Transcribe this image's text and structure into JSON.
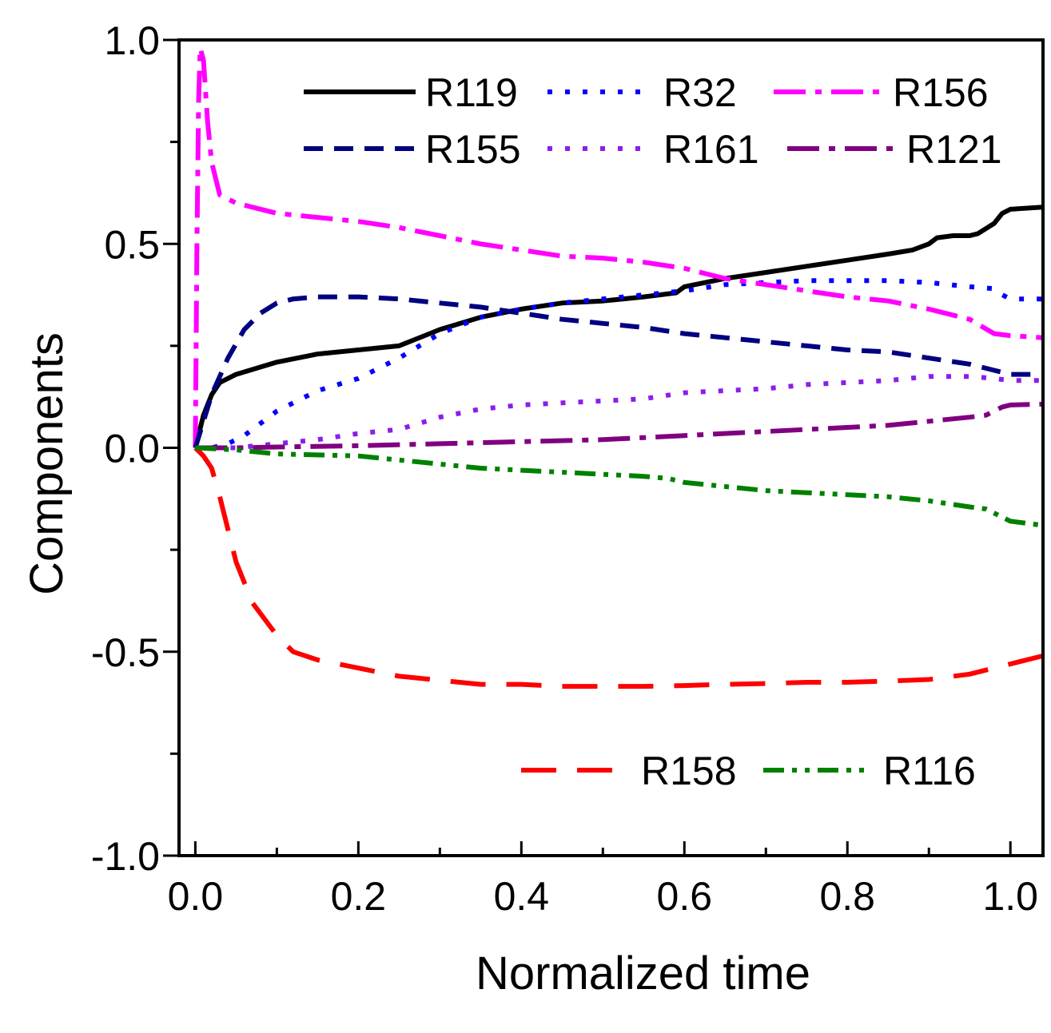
{
  "chart_data": {
    "type": "line",
    "title": "",
    "xlabel": "Normalized time",
    "ylabel": "Components",
    "xlim": [
      -0.02,
      1.04
    ],
    "ylim": [
      -1.0,
      1.0
    ],
    "xticks": [
      0.0,
      0.2,
      0.4,
      0.6,
      0.8,
      1.0
    ],
    "xtick_labels": [
      "0.0",
      "0.2",
      "0.4",
      "0.6",
      "0.8",
      "1.0"
    ],
    "yticks": [
      -1.0,
      -0.5,
      0.0,
      0.5,
      1.0
    ],
    "ytick_labels": [
      "-1.0",
      "-0.5",
      "0.0",
      "0.5",
      "1.0"
    ],
    "grid": false,
    "legend_position": "top (upper rows) and bottom-right",
    "series": [
      {
        "name": "R119",
        "color": "#000000",
        "dash": "solid",
        "x": [
          0,
          0.01,
          0.02,
          0.03,
          0.05,
          0.1,
          0.15,
          0.2,
          0.25,
          0.3,
          0.35,
          0.4,
          0.45,
          0.5,
          0.55,
          0.59,
          0.6,
          0.65,
          0.7,
          0.75,
          0.8,
          0.85,
          0.88,
          0.9,
          0.91,
          0.93,
          0.95,
          0.96,
          0.98,
          0.99,
          1.0,
          1.04
        ],
        "y": [
          0,
          0.08,
          0.13,
          0.16,
          0.18,
          0.21,
          0.23,
          0.24,
          0.25,
          0.29,
          0.32,
          0.34,
          0.355,
          0.36,
          0.37,
          0.38,
          0.395,
          0.415,
          0.43,
          0.445,
          0.46,
          0.475,
          0.485,
          0.5,
          0.515,
          0.52,
          0.52,
          0.525,
          0.55,
          0.575,
          0.585,
          0.59
        ]
      },
      {
        "name": "R32",
        "color": "#0000ff",
        "dash": "dot",
        "x": [
          0,
          0.02,
          0.04,
          0.06,
          0.1,
          0.15,
          0.2,
          0.25,
          0.3,
          0.35,
          0.4,
          0.45,
          0.5,
          0.55,
          0.6,
          0.65,
          0.7,
          0.75,
          0.8,
          0.85,
          0.9,
          0.95,
          0.98,
          0.99,
          1.0,
          1.04
        ],
        "y": [
          0,
          0,
          0.01,
          0.03,
          0.09,
          0.14,
          0.17,
          0.22,
          0.28,
          0.32,
          0.34,
          0.355,
          0.365,
          0.375,
          0.385,
          0.4,
          0.405,
          0.41,
          0.41,
          0.41,
          0.405,
          0.395,
          0.39,
          0.375,
          0.365,
          0.365
        ]
      },
      {
        "name": "R156",
        "color": "#ff00ff",
        "dash": "dashdot",
        "x": [
          0,
          0.002,
          0.004,
          0.006,
          0.01,
          0.015,
          0.02,
          0.03,
          0.05,
          0.1,
          0.2,
          0.25,
          0.3,
          0.35,
          0.4,
          0.45,
          0.5,
          0.55,
          0.6,
          0.65,
          0.7,
          0.75,
          0.8,
          0.85,
          0.9,
          0.95,
          0.98,
          1.0,
          1.04
        ],
        "y": [
          0,
          0.5,
          0.85,
          0.98,
          0.95,
          0.8,
          0.7,
          0.62,
          0.6,
          0.575,
          0.555,
          0.54,
          0.52,
          0.5,
          0.485,
          0.47,
          0.465,
          0.455,
          0.44,
          0.415,
          0.4,
          0.385,
          0.37,
          0.36,
          0.34,
          0.315,
          0.28,
          0.275,
          0.27
        ]
      },
      {
        "name": "R155",
        "color": "#000080",
        "dash": "dash",
        "x": [
          0,
          0.02,
          0.04,
          0.06,
          0.08,
          0.1,
          0.12,
          0.15,
          0.2,
          0.25,
          0.3,
          0.35,
          0.4,
          0.45,
          0.5,
          0.55,
          0.6,
          0.65,
          0.7,
          0.75,
          0.8,
          0.85,
          0.9,
          0.95,
          0.98,
          1.0,
          1.04
        ],
        "y": [
          0,
          0.13,
          0.22,
          0.29,
          0.33,
          0.355,
          0.365,
          0.37,
          0.37,
          0.365,
          0.355,
          0.345,
          0.33,
          0.315,
          0.305,
          0.295,
          0.28,
          0.27,
          0.26,
          0.25,
          0.24,
          0.235,
          0.22,
          0.205,
          0.19,
          0.18,
          0.18
        ]
      },
      {
        "name": "R161",
        "color": "#8b1ee8",
        "dash": "dot",
        "x": [
          0,
          0.05,
          0.1,
          0.15,
          0.2,
          0.25,
          0.3,
          0.35,
          0.4,
          0.45,
          0.5,
          0.55,
          0.6,
          0.65,
          0.7,
          0.75,
          0.8,
          0.85,
          0.9,
          0.95,
          0.98,
          1.0,
          1.04
        ],
        "y": [
          0,
          0,
          0.01,
          0.02,
          0.035,
          0.045,
          0.075,
          0.095,
          0.105,
          0.11,
          0.115,
          0.12,
          0.135,
          0.14,
          0.145,
          0.155,
          0.16,
          0.165,
          0.175,
          0.175,
          0.17,
          0.165,
          0.165
        ]
      },
      {
        "name": "R121",
        "color": "#800080",
        "dash": "dashdot",
        "x": [
          0,
          0.05,
          0.1,
          0.2,
          0.3,
          0.4,
          0.5,
          0.6,
          0.7,
          0.8,
          0.85,
          0.9,
          0.95,
          0.97,
          0.99,
          1.0,
          1.04
        ],
        "y": [
          0,
          0,
          0.002,
          0.005,
          0.01,
          0.015,
          0.02,
          0.03,
          0.04,
          0.05,
          0.055,
          0.065,
          0.075,
          0.08,
          0.1,
          0.105,
          0.107
        ]
      },
      {
        "name": "R158",
        "color": "#ff0000",
        "dash": "longdash",
        "x": [
          0,
          0.01,
          0.02,
          0.03,
          0.04,
          0.05,
          0.07,
          0.1,
          0.12,
          0.15,
          0.2,
          0.25,
          0.3,
          0.35,
          0.4,
          0.45,
          0.5,
          0.55,
          0.6,
          0.65,
          0.7,
          0.75,
          0.8,
          0.85,
          0.9,
          0.95,
          1.0,
          1.04
        ],
        "y": [
          0,
          -0.02,
          -0.05,
          -0.12,
          -0.2,
          -0.28,
          -0.38,
          -0.46,
          -0.5,
          -0.52,
          -0.54,
          -0.56,
          -0.57,
          -0.58,
          -0.58,
          -0.585,
          -0.585,
          -0.585,
          -0.583,
          -0.58,
          -0.578,
          -0.575,
          -0.575,
          -0.572,
          -0.568,
          -0.555,
          -0.53,
          -0.51
        ]
      },
      {
        "name": "R116",
        "color": "#008000",
        "dash": "dashdotdot",
        "x": [
          0,
          0.05,
          0.1,
          0.2,
          0.25,
          0.3,
          0.35,
          0.4,
          0.45,
          0.5,
          0.55,
          0.58,
          0.6,
          0.65,
          0.7,
          0.75,
          0.8,
          0.85,
          0.9,
          0.95,
          0.97,
          0.99,
          1.0,
          1.04
        ],
        "y": [
          0,
          -0.005,
          -0.015,
          -0.02,
          -0.03,
          -0.04,
          -0.05,
          -0.055,
          -0.06,
          -0.065,
          -0.07,
          -0.075,
          -0.085,
          -0.095,
          -0.105,
          -0.11,
          -0.115,
          -0.12,
          -0.13,
          -0.145,
          -0.15,
          -0.17,
          -0.18,
          -0.19
        ]
      }
    ],
    "legend_rows": [
      [
        "R119",
        "R32",
        "R156"
      ],
      [
        "R155",
        "R161",
        "R121"
      ],
      [
        "R158",
        "R116"
      ]
    ]
  }
}
